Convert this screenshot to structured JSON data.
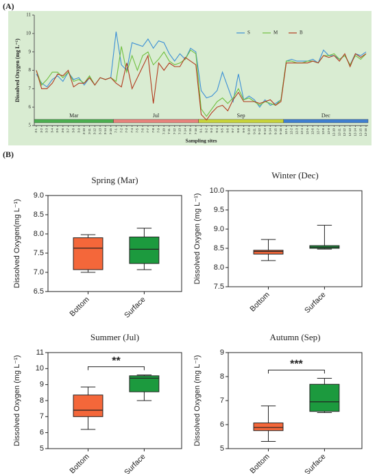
{
  "panel_labels": [
    "(A)",
    "(B)"
  ],
  "chart_data": [
    {
      "type": "line",
      "ylabel": "Dissolved Oxygen (mg L⁻¹)",
      "xlabel": "Sampling sites",
      "background": "#d9ecd2",
      "ylim": [
        5,
        11
      ],
      "yticks": [
        5,
        6,
        7,
        8,
        9,
        10,
        11
      ],
      "categories": [
        "3-1",
        "3-2",
        "3-3",
        "3-4",
        "3-5",
        "3-6",
        "3-7",
        "3-8",
        "3-9",
        "3-10",
        "3-11",
        "3-12",
        "3-13",
        "3-14",
        "3-15",
        "7-1",
        "7-2",
        "7-3",
        "7-4",
        "7-5",
        "7-6",
        "7-7",
        "7-8",
        "7-9",
        "7-10",
        "7-11",
        "7-12",
        "7-13",
        "7-14",
        "7-15",
        "7-16",
        "9-1",
        "9-2",
        "9-3",
        "9-4",
        "9-5",
        "9-6",
        "9-7",
        "9-8",
        "9-9",
        "9-10",
        "9-11",
        "9-12",
        "9-13",
        "9-14",
        "9-15",
        "9-16",
        "12-1",
        "12-2",
        "12-3",
        "12-4",
        "12-5",
        "12-6",
        "12-7",
        "12-8",
        "12-9",
        "12-10",
        "12-11",
        "12-12",
        "12-13",
        "12-14",
        "12-15",
        "12-16"
      ],
      "seasons": [
        {
          "label": "Mar",
          "color": "#4caf50"
        },
        {
          "label": "Jul",
          "color": "#e8837c"
        },
        {
          "label": "Sep",
          "color": "#c8d43a"
        },
        {
          "label": "Dec",
          "color": "#3f7fd0"
        }
      ],
      "series": [
        {
          "name": "S",
          "color": "#3b8fd6",
          "values": [
            7.8,
            7.3,
            7.1,
            7.5,
            7.7,
            7.4,
            7.9,
            7.5,
            7.6,
            7.2,
            7.6,
            7.2,
            7.6,
            7.5,
            7.6,
            10.1,
            8.3,
            8.0,
            9.5,
            9.4,
            9.3,
            9.7,
            9.2,
            9.6,
            9.5,
            8.9,
            8.5,
            8.9,
            8.6,
            9.2,
            9.0,
            6.9,
            6.5,
            6.6,
            6.9,
            7.9,
            7.1,
            6.3,
            7.8,
            6.4,
            6.6,
            6.4,
            6.0,
            6.4,
            6.1,
            6.2,
            6.4,
            8.5,
            8.6,
            8.5,
            8.5,
            8.5,
            8.6,
            8.4,
            9.1,
            8.8,
            8.8,
            8.6,
            8.8,
            8.3,
            8.9,
            8.8,
            9.0
          ]
        },
        {
          "name": "M",
          "color": "#6fbf3f",
          "values": [
            8.0,
            7.2,
            7.5,
            7.9,
            7.9,
            7.6,
            7.9,
            7.4,
            7.5,
            7.3,
            7.7,
            7.2,
            7.6,
            7.5,
            7.6,
            7.4,
            9.3,
            7.9,
            8.8,
            8.0,
            8.8,
            9.0,
            8.3,
            8.6,
            9.0,
            8.5,
            8.3,
            8.4,
            8.6,
            9.1,
            8.9,
            5.9,
            5.5,
            5.9,
            6.3,
            6.5,
            6.2,
            6.5,
            7.0,
            6.4,
            6.5,
            6.3,
            6.1,
            6.3,
            6.2,
            6.1,
            6.4,
            8.5,
            8.5,
            8.4,
            8.4,
            8.5,
            8.5,
            8.4,
            8.8,
            8.8,
            8.9,
            8.6,
            8.8,
            8.3,
            8.8,
            8.6,
            8.9
          ]
        },
        {
          "name": "B",
          "color": "#b23a1e",
          "values": [
            8.0,
            7.0,
            7.0,
            7.3,
            7.8,
            7.7,
            8.0,
            7.1,
            7.3,
            7.3,
            7.6,
            7.2,
            7.6,
            7.5,
            7.6,
            7.3,
            7.1,
            8.4,
            7.0,
            7.6,
            8.2,
            8.8,
            6.2,
            8.4,
            8.0,
            8.4,
            8.2,
            8.2,
            8.7,
            8.5,
            8.3,
            5.6,
            5.3,
            5.7,
            6.0,
            6.1,
            5.8,
            6.4,
            6.8,
            6.3,
            6.3,
            6.3,
            6.2,
            6.3,
            6.4,
            6.1,
            6.3,
            8.4,
            8.4,
            8.4,
            8.4,
            8.4,
            8.5,
            8.4,
            8.8,
            8.7,
            8.8,
            8.5,
            8.9,
            8.2,
            8.9,
            8.7,
            8.9
          ]
        }
      ]
    },
    {
      "type": "box",
      "title": "Spring (Mar)",
      "ylabel": "Dissolved Oxygen(mg L⁻¹)",
      "ylim": [
        6.5,
        9.0
      ],
      "yticks": [
        6.5,
        {
          "value": 7,
          "label": "7.0"
        },
        7.5,
        {
          "value": 8,
          "label": "8.0"
        },
        8.5,
        {
          "value": 9,
          "label": "9.0"
        }
      ],
      "series": [
        {
          "name": "Bottom",
          "color": "#f4673a",
          "min": 7.0,
          "q1": 7.07,
          "median": 7.63,
          "q3": 7.9,
          "max": 7.98
        },
        {
          "name": "Surface",
          "color": "#1c9a3e",
          "min": 7.07,
          "q1": 7.23,
          "median": 7.6,
          "q3": 7.92,
          "max": 8.15
        }
      ]
    },
    {
      "type": "box",
      "title": "Winter (Dec)",
      "ylabel": "Dissolved Oxygen (mg L⁻¹)",
      "ylim": [
        7.5,
        10.0
      ],
      "yticks": [
        7.5,
        {
          "value": 8,
          "label": "8.0"
        },
        8.5,
        {
          "value": 9,
          "label": "9.0"
        },
        9.5,
        {
          "value": 10,
          "label": "10.0"
        }
      ],
      "series": [
        {
          "name": "Bottom",
          "color": "#f4673a",
          "min": 8.18,
          "q1": 8.35,
          "median": 8.42,
          "q3": 8.45,
          "max": 8.73
        },
        {
          "name": "Surface",
          "color": "#1c9a3e",
          "min": 8.48,
          "q1": 8.5,
          "median": 8.53,
          "q3": 8.57,
          "max": 9.1
        }
      ]
    },
    {
      "type": "box",
      "title": "Summer (Jul)",
      "ylabel": "Dissolved Oxygen (mg L⁻¹)",
      "ylim": [
        5,
        11
      ],
      "yticks": [
        5,
        6,
        7,
        8,
        9,
        10,
        11
      ],
      "annotation": "**",
      "series": [
        {
          "name": "Bottom",
          "color": "#f4673a",
          "min": 6.2,
          "q1": 7.0,
          "median": 7.4,
          "q3": 8.35,
          "max": 8.85
        },
        {
          "name": "Surface",
          "color": "#1c9a3e",
          "min": 8.0,
          "q1": 8.55,
          "median": 9.4,
          "q3": 9.55,
          "max": 9.6
        }
      ]
    },
    {
      "type": "box",
      "title": "Autumn (Sep)",
      "ylabel": "Dissolved Oxygen (mg L⁻¹)",
      "ylim": [
        5,
        9
      ],
      "yticks": [
        5,
        6,
        7,
        8,
        9
      ],
      "annotation": "***",
      "series": [
        {
          "name": "Bottom",
          "color": "#f4673a",
          "min": 5.3,
          "q1": 5.75,
          "median": 5.88,
          "q3": 6.07,
          "max": 6.78
        },
        {
          "name": "Surface",
          "color": "#1c9a3e",
          "min": 6.5,
          "q1": 6.55,
          "median": 6.95,
          "q3": 7.68,
          "max": 7.93
        }
      ]
    }
  ]
}
